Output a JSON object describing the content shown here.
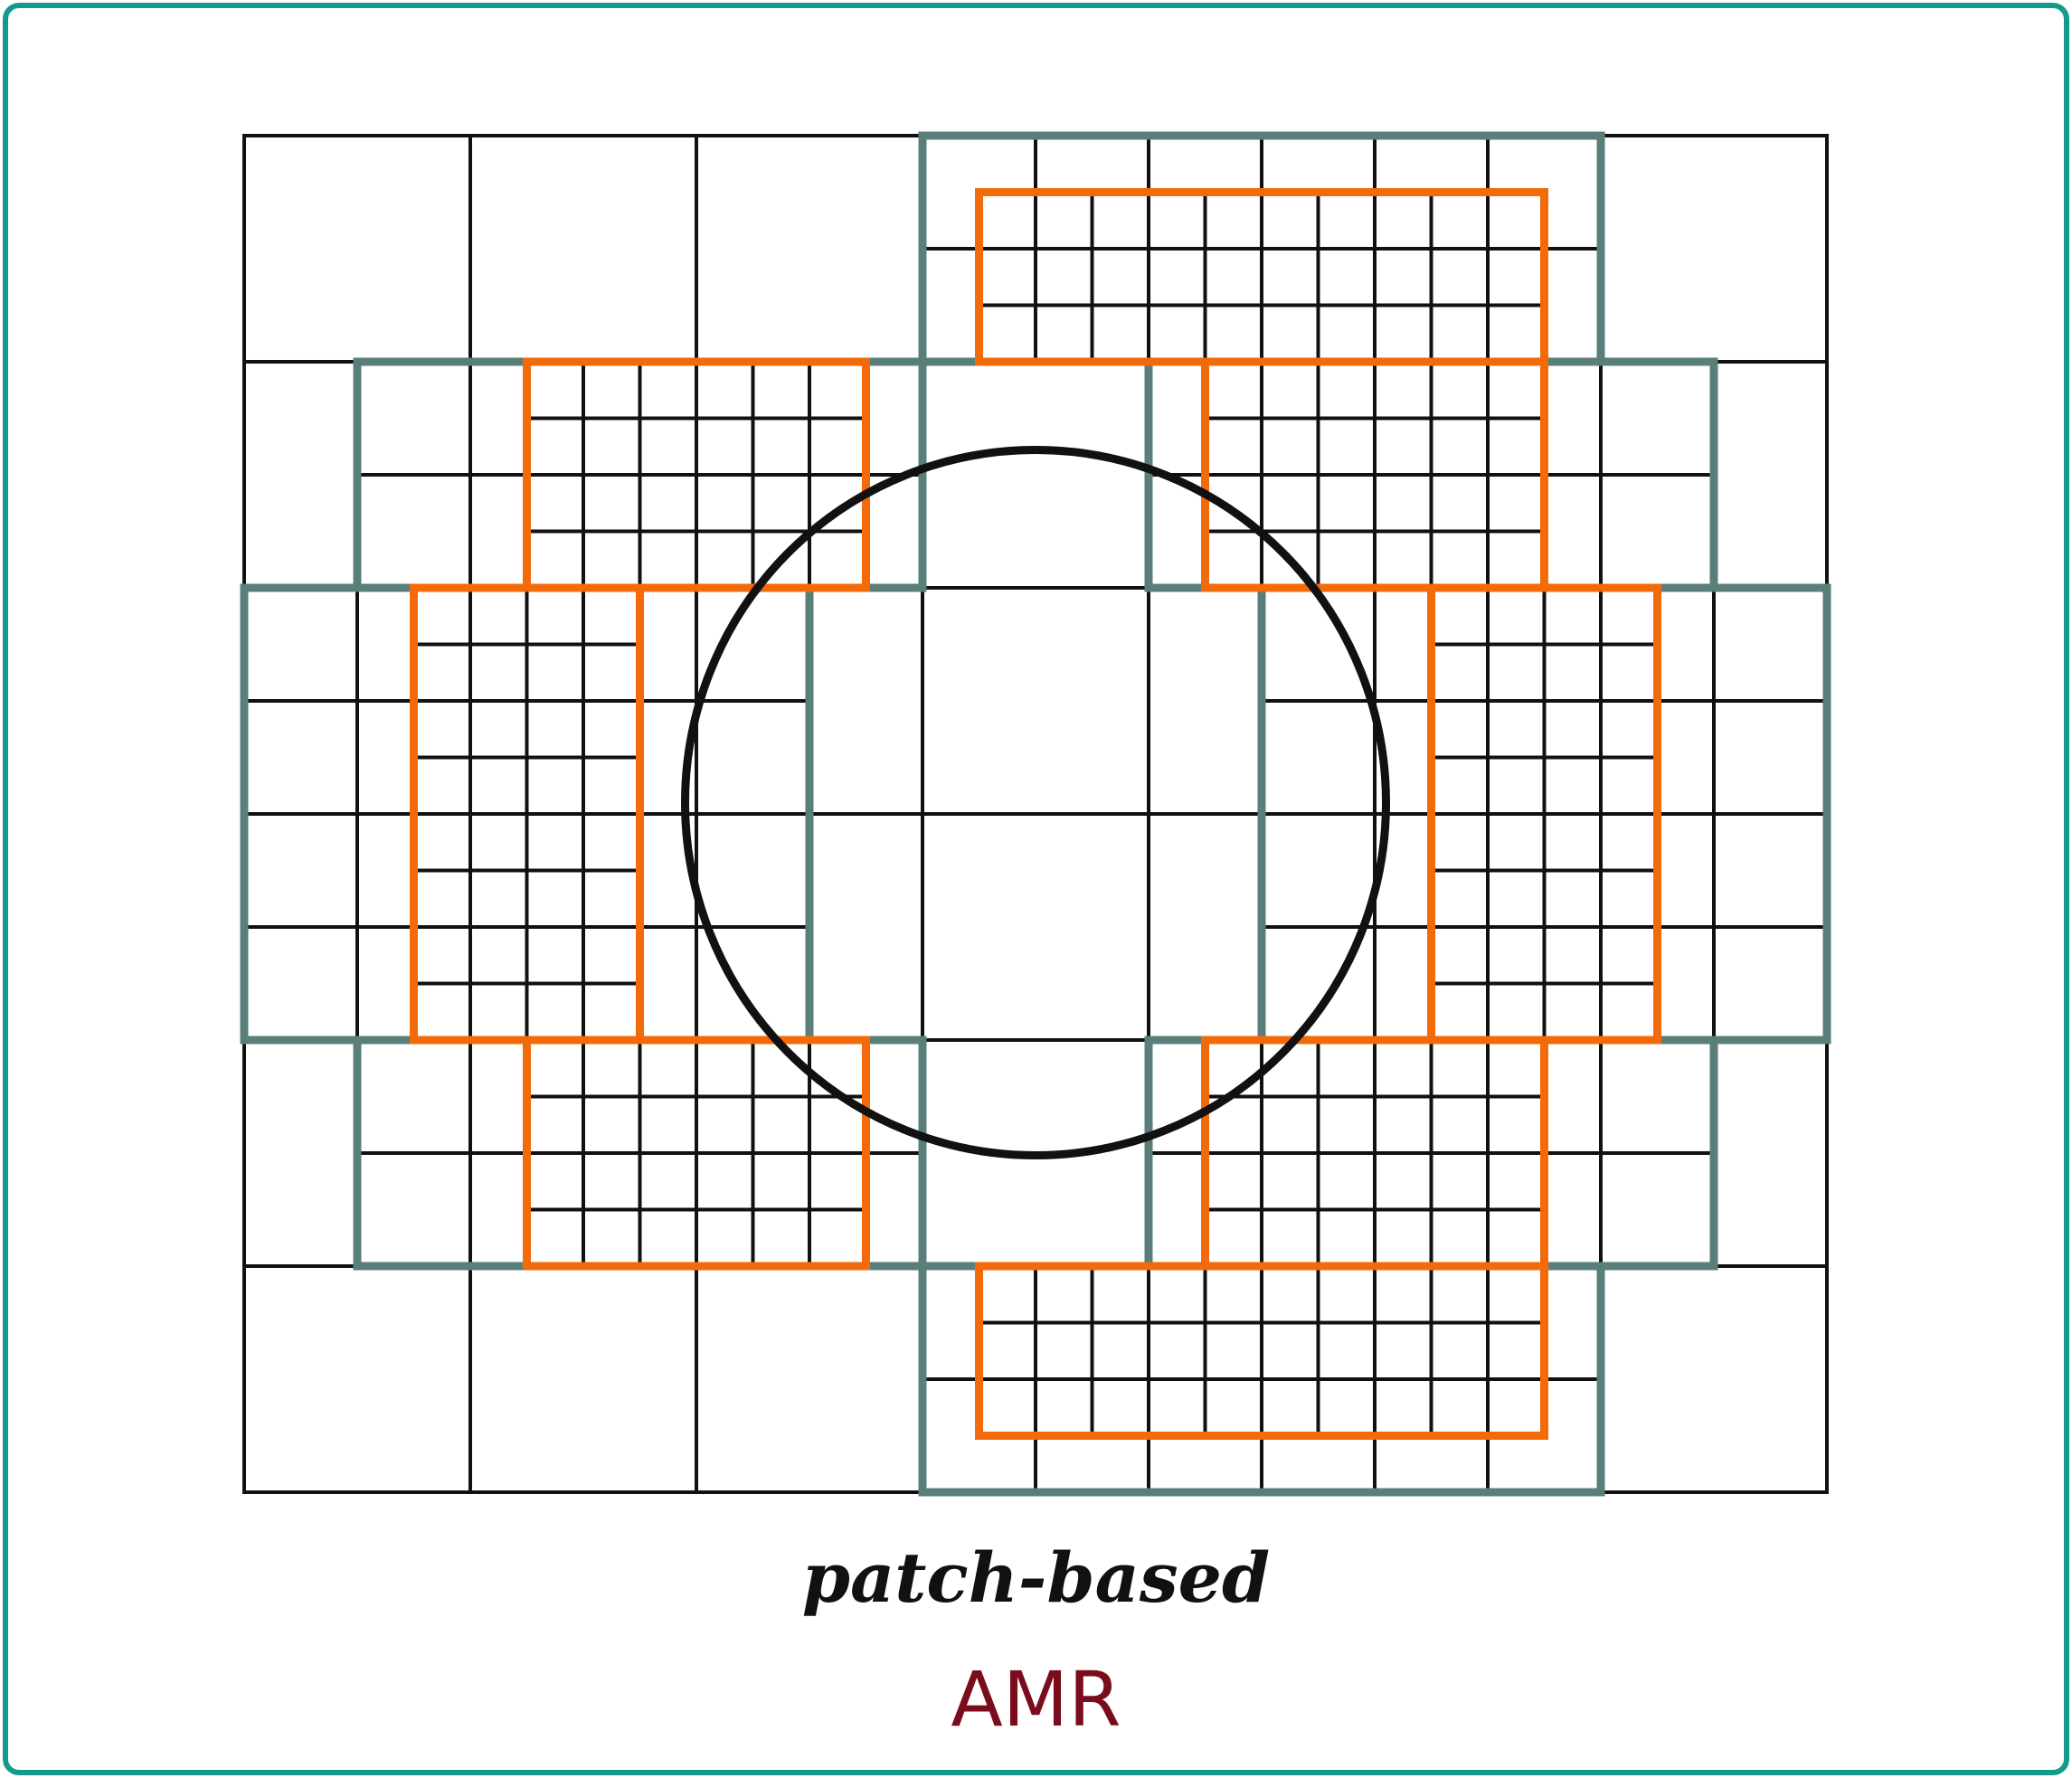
{
  "caption": "patch-based",
  "label": "AMR",
  "colors": {
    "border": "#139a8a",
    "grid": "#111111",
    "level1_patch": "#5a7f7a",
    "level2_patch": "#f26a0a",
    "circle": "#111111",
    "label": "#7a0c1e"
  }
}
